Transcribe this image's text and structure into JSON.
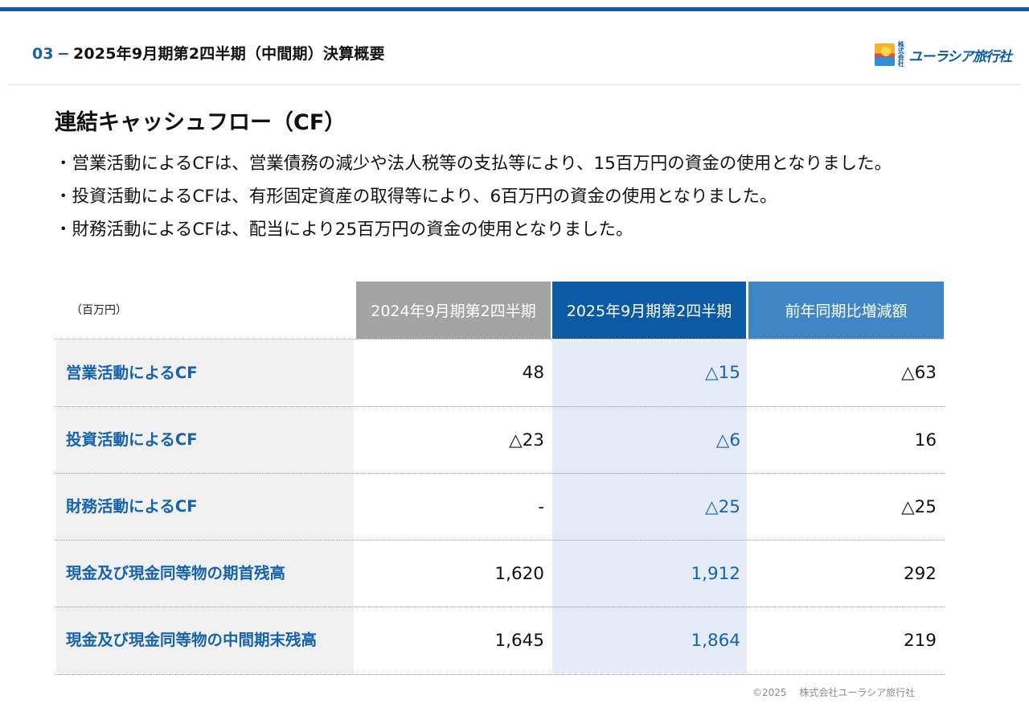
{
  "header": {
    "section_number": "03",
    "section_dash": "−",
    "section_title": "2025年9月期第2四半期（中間期）決算概要",
    "logo_small": "株式会社",
    "logo_text": "ユーラシア旅行社",
    "accent_color": "#0c5aa6"
  },
  "page_title": "連結キャッシュフロー（CF）",
  "bullets": [
    "・営業活動によるCFは、営業債務の減少や法人税等の支払等により、15百万円の資金の使用となりました。",
    "・投資活動によるCFは、有形固定資産の取得等により、6百万円の資金の使用となりました。",
    "・財務活動によるCFは、配当により25百万円の資金の使用となりました。"
  ],
  "table": {
    "unit": "（百万円）",
    "columns": [
      "2024年9月期第2四半期",
      "2025年9月期第2四半期",
      "前年同期比増減額"
    ],
    "column_colors": [
      "#a3a3a3",
      "#0c5aa6",
      "#3f86c6"
    ],
    "rows": [
      {
        "label": "営業活動によるCF",
        "values": [
          "48",
          "△15",
          "△63"
        ]
      },
      {
        "label": "投資活動によるCF",
        "values": [
          "△23",
          "△6",
          "16"
        ]
      },
      {
        "label": "財務活動によるCF",
        "values": [
          "-",
          "△25",
          "△25"
        ]
      },
      {
        "label": "現金及び現金同等物の期首残高",
        "values": [
          "1,620",
          "1,912",
          "292"
        ]
      },
      {
        "label": "現金及び現金同等物の中間期末残高",
        "values": [
          "1,645",
          "1,864",
          "219"
        ]
      }
    ]
  },
  "footer": "©2025　 株式会社ユーラシア旅行社"
}
